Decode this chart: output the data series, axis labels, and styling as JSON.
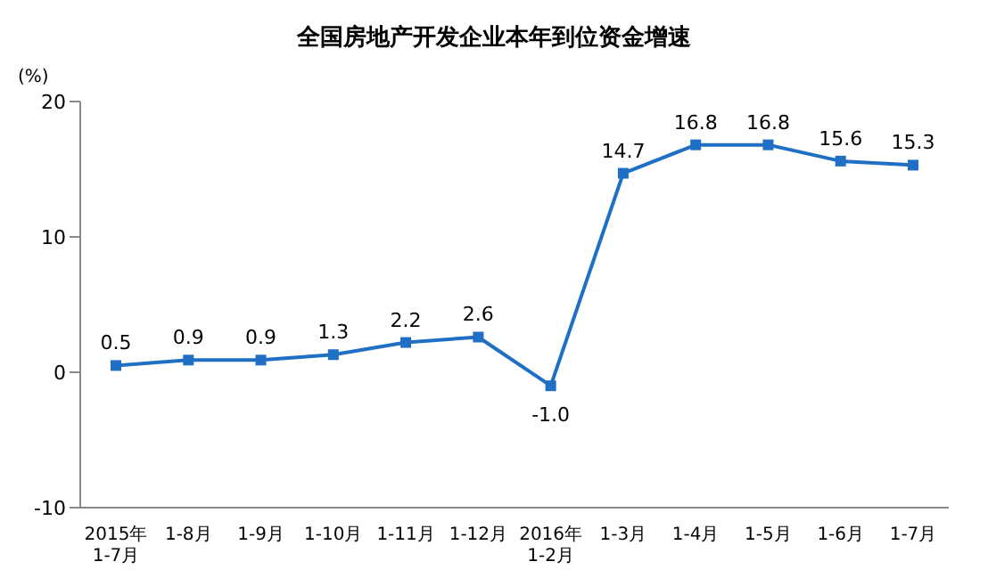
{
  "chart_data": {
    "type": "line",
    "title": "全国房地产开发企业本年到位资金增速",
    "ylabel": "(%)",
    "categories": [
      "2015年\n1-7月",
      "1-8月",
      "1-9月",
      "1-10月",
      "1-11月",
      "1-12月",
      "2016年\n1-2月",
      "1-3月",
      "1-4月",
      "1-5月",
      "1-6月",
      "1-7月"
    ],
    "series": [
      {
        "color": "#1f6fc4",
        "values": [
          0.5,
          0.9,
          0.9,
          1.3,
          2.2,
          2.6,
          -1.0,
          14.7,
          16.8,
          16.8,
          15.6,
          15.3
        ],
        "value_labels": [
          "0.5",
          "0.9",
          "0.9",
          "1.3",
          "2.2",
          "2.6",
          "-1.0",
          "14.7",
          "16.8",
          "16.8",
          "15.6",
          "15.3"
        ]
      }
    ],
    "ylim": [
      -10,
      20
    ],
    "yticks": [
      -10,
      0,
      10,
      20
    ],
    "grid": false,
    "legend": false,
    "marker": "square",
    "line_style": "solid"
  }
}
